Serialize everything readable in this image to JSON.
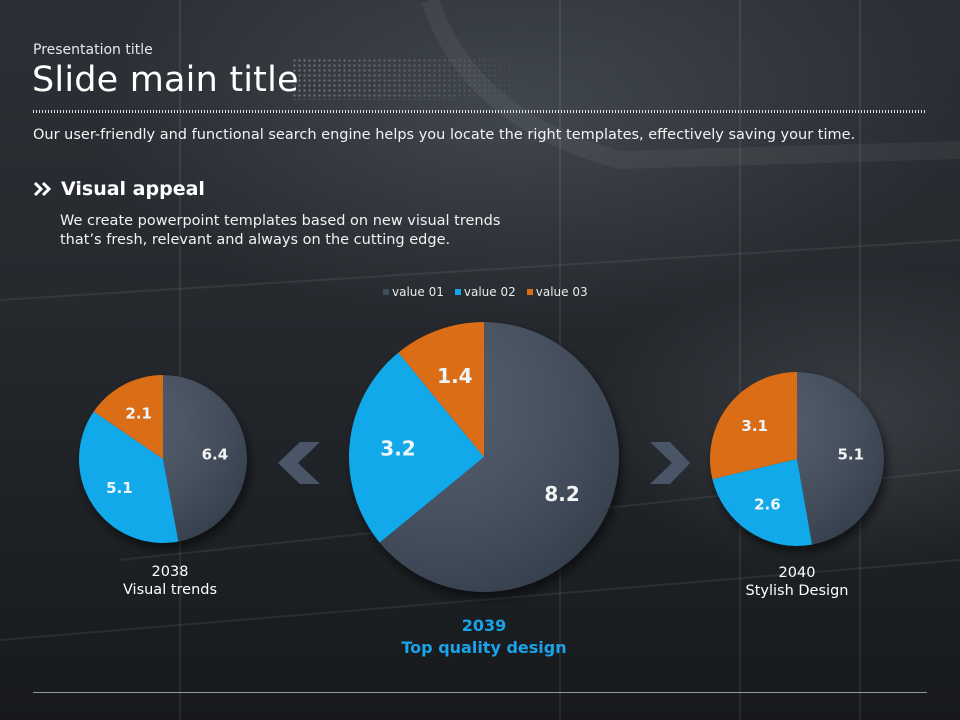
{
  "header": {
    "presentation_title": "Presentation title",
    "slide_title": "Slide main title",
    "lead": "Our user-friendly and functional search engine helps you locate the right templates, effectively saving your time."
  },
  "section": {
    "title": "Visual appeal",
    "body_line1": "We create powerpoint templates based on new visual trends",
    "body_line2": "that’s fresh, relevant and always on the cutting edge."
  },
  "icons": [
    "double-chevron-right-icon",
    "chevron-left-icon",
    "chevron-right-icon"
  ],
  "colors": {
    "value_01": "#3f4a5a",
    "value_02": "#12a9ea",
    "value_03": "#dc6d17",
    "accent": "#1aa3e8"
  },
  "chart_data": [
    {
      "type": "pie",
      "series": [
        "value 01",
        "value 02",
        "value 03"
      ],
      "values": [
        6.4,
        5.1,
        2.1
      ],
      "label_line1": "2038",
      "label_line2": "Visual trends"
    },
    {
      "type": "pie",
      "series": [
        "value 01",
        "value 02",
        "value 03"
      ],
      "values": [
        8.2,
        3.2,
        1.4
      ],
      "label_line1": "2039",
      "label_line2": "Top quality design",
      "legend": {
        "placement": "top",
        "entries": [
          "value 01",
          "value 02",
          "value 03"
        ]
      }
    },
    {
      "type": "pie",
      "series": [
        "value 01",
        "value 02",
        "value 03"
      ],
      "values": [
        5.1,
        2.6,
        3.1
      ],
      "label_line1": "2040",
      "label_line2": "Stylish Design"
    }
  ]
}
